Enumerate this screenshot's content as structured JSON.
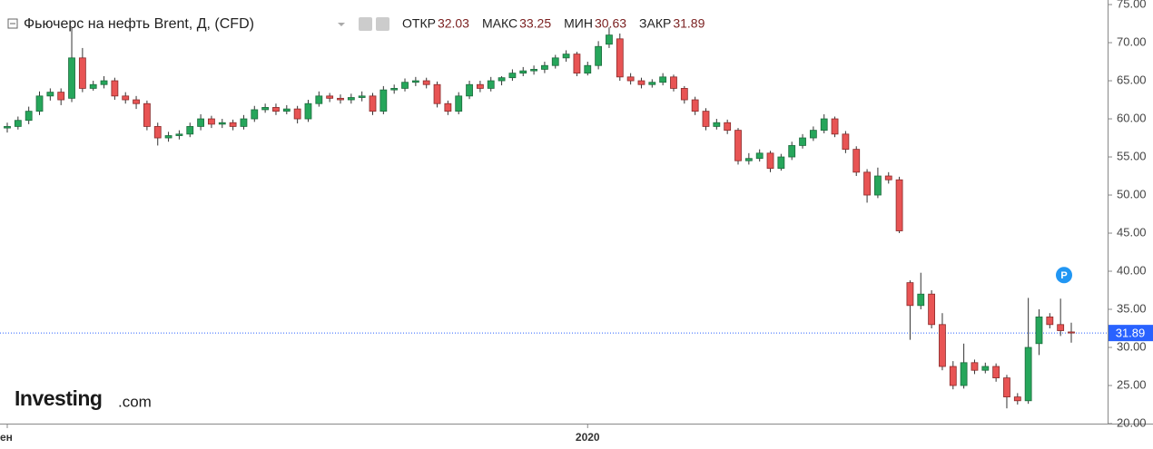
{
  "chart_data": {
    "type": "candlestick",
    "title": "Фьючерс на нефть Brent, Д, (CFD)",
    "legend": [
      {
        "label": "ОТКР",
        "value": 32.03
      },
      {
        "label": "МАКС",
        "value": 33.25
      },
      {
        "label": "МИН",
        "value": 30.63
      },
      {
        "label": "ЗАКР",
        "value": 31.89
      }
    ],
    "last_price": 31.89,
    "badge": "P",
    "logo": {
      "brand": "Investing",
      "suffix": ".com"
    },
    "up_color": "#26a65b",
    "down_color": "#e85454",
    "price_line_color": "#2962ff",
    "ylim": [
      20,
      75.6
    ],
    "yticks": [
      {
        "value": 20,
        "label": "20.00"
      },
      {
        "value": 25,
        "label": "25.00"
      },
      {
        "value": 30,
        "label": "30.00"
      },
      {
        "value": 35,
        "label": "35.00"
      },
      {
        "value": 40,
        "label": "40.00"
      },
      {
        "value": 45,
        "label": "45.00"
      },
      {
        "value": 50,
        "label": "50.00"
      },
      {
        "value": 55,
        "label": "55.00"
      },
      {
        "value": 60,
        "label": "60.00"
      },
      {
        "value": 65,
        "label": "65.00"
      },
      {
        "value": 70,
        "label": "70.00"
      },
      {
        "value": 75,
        "label": "75.00"
      }
    ],
    "categories": [
      "ен",
      null,
      null,
      null,
      null,
      null,
      null,
      null,
      null,
      null,
      null,
      null,
      null,
      null,
      null,
      null,
      null,
      null,
      null,
      null,
      null,
      null,
      null,
      null,
      null,
      null,
      null,
      null,
      null,
      null,
      null,
      null,
      null,
      null,
      null,
      null,
      null,
      null,
      null,
      null,
      null,
      null,
      null,
      null,
      null,
      null,
      null,
      null,
      null,
      null,
      null,
      null,
      null,
      null,
      "2020",
      null,
      null,
      null,
      null,
      null,
      null,
      null,
      null,
      null,
      null,
      null,
      null,
      null,
      null,
      null,
      null,
      null,
      null,
      null,
      null,
      null,
      null,
      null,
      null,
      null,
      null,
      null,
      null,
      null,
      null,
      null,
      null,
      null,
      null,
      null,
      null,
      null,
      null,
      null,
      null,
      null,
      null,
      null,
      null,
      null
    ],
    "open": [
      58.8,
      59,
      59.8,
      61,
      63,
      63.5,
      62.7,
      68,
      64,
      64.5,
      65,
      63,
      62.5,
      62,
      59,
      57.5,
      57.8,
      58,
      59,
      60,
      59.3,
      59.5,
      59,
      60,
      61.2,
      61.5,
      61,
      61.3,
      60,
      62,
      63,
      62.7,
      62.5,
      62.8,
      63,
      61,
      63.8,
      64,
      64.8,
      65,
      64.5,
      62,
      61,
      63,
      64.5,
      64,
      65,
      65.4,
      66,
      66.3,
      66.5,
      67,
      68,
      68.5,
      66,
      67,
      69.8,
      70.5,
      65.5,
      65,
      64.5,
      64.8,
      65.5,
      64,
      62.5,
      61,
      59,
      59.5,
      58.5,
      54.5,
      54.8,
      55.5,
      53.5,
      55,
      56.5,
      57.5,
      58.5,
      60,
      58,
      56,
      53,
      50,
      52.5,
      52,
      38.5,
      35.5,
      37,
      33,
      27.5,
      25,
      28,
      27,
      27.5,
      26,
      23.5,
      23,
      30.5,
      34,
      33,
      32.03
    ],
    "high": [
      59.5,
      60.3,
      61.6,
      63.6,
      64,
      64,
      72,
      69.3,
      65,
      65.6,
      65.4,
      63.5,
      63,
      62.4,
      59.5,
      58.3,
      58.5,
      59.5,
      60.6,
      60.4,
      60,
      59.9,
      60.5,
      61.7,
      62,
      62,
      61.8,
      61.7,
      62.5,
      63.6,
      63.4,
      63.2,
      63.3,
      63.6,
      63.4,
      64.3,
      64.5,
      65.3,
      65.5,
      65.4,
      64.9,
      62.4,
      63.5,
      65,
      65,
      65.5,
      65.6,
      66.5,
      66.8,
      67,
      67.5,
      68.4,
      69,
      68.8,
      67.5,
      70.2,
      72,
      71.2,
      66,
      65.4,
      65.2,
      66,
      65.8,
      64.3,
      62.9,
      61.4,
      60,
      59.9,
      58.8,
      55.5,
      56,
      55.8,
      55.4,
      57,
      58,
      59,
      60.6,
      60.3,
      58.4,
      56.4,
      53.4,
      53.6,
      53,
      52.4,
      38.8,
      39.8,
      37.5,
      34.5,
      28.2,
      30.5,
      28.4,
      28,
      27.9,
      26.4,
      24,
      36.5,
      35,
      34.5,
      36.4,
      33.25
    ],
    "low": [
      58.2,
      58.6,
      59.3,
      60.5,
      62.4,
      61.8,
      62.2,
      63.5,
      63.7,
      64,
      62.5,
      62,
      61.3,
      58.5,
      56.5,
      57,
      57.3,
      57.6,
      58.5,
      58.8,
      58.8,
      58.5,
      58.6,
      59.6,
      60.8,
      60.5,
      60.6,
      59.4,
      59.6,
      61.6,
      62.2,
      62,
      62,
      62.3,
      60.5,
      60.6,
      63.3,
      63.6,
      64.3,
      64,
      61.5,
      60.5,
      60.6,
      62.6,
      63.5,
      63.6,
      64.4,
      65,
      65.6,
      65.8,
      66,
      66.6,
      67.5,
      65.6,
      65.7,
      66.5,
      69.3,
      65,
      64.5,
      64,
      64.1,
      64.4,
      63.6,
      62,
      60.5,
      58.5,
      58.6,
      58,
      54,
      54,
      54.4,
      53,
      53.2,
      54.6,
      56.1,
      57.1,
      58.1,
      57.6,
      55.5,
      52.5,
      49,
      49.6,
      51.5,
      45,
      31,
      35,
      32.5,
      27,
      24.5,
      24.6,
      26.5,
      26.6,
      25.5,
      22,
      22.5,
      22.6,
      29,
      32.5,
      31.5,
      30.63
    ],
    "close": [
      59,
      59.8,
      61,
      63,
      63.5,
      62.5,
      68,
      64,
      64.5,
      65,
      63,
      62.5,
      62,
      59,
      57.5,
      57.8,
      58,
      59,
      60,
      59.3,
      59.5,
      59,
      60,
      61.2,
      61.5,
      61,
      61.3,
      60,
      62,
      63,
      62.7,
      62.5,
      62.8,
      63,
      61,
      63.8,
      64,
      64.8,
      65,
      64.5,
      62,
      61,
      63,
      64.5,
      64,
      65,
      65.4,
      66,
      66.3,
      66.5,
      67,
      68,
      68.5,
      66,
      67,
      69.5,
      71,
      65.5,
      65,
      64.5,
      64.8,
      65.5,
      64,
      62.5,
      61,
      59,
      59.5,
      58.5,
      54.5,
      54.8,
      55.5,
      53.5,
      55,
      56.5,
      57.5,
      58.5,
      60,
      58,
      56,
      53,
      50,
      52.5,
      52,
      45.3,
      35.5,
      37,
      33,
      27.5,
      25,
      28,
      27,
      27.5,
      26,
      23.5,
      23,
      30,
      34,
      33,
      32.2,
      31.89
    ]
  }
}
